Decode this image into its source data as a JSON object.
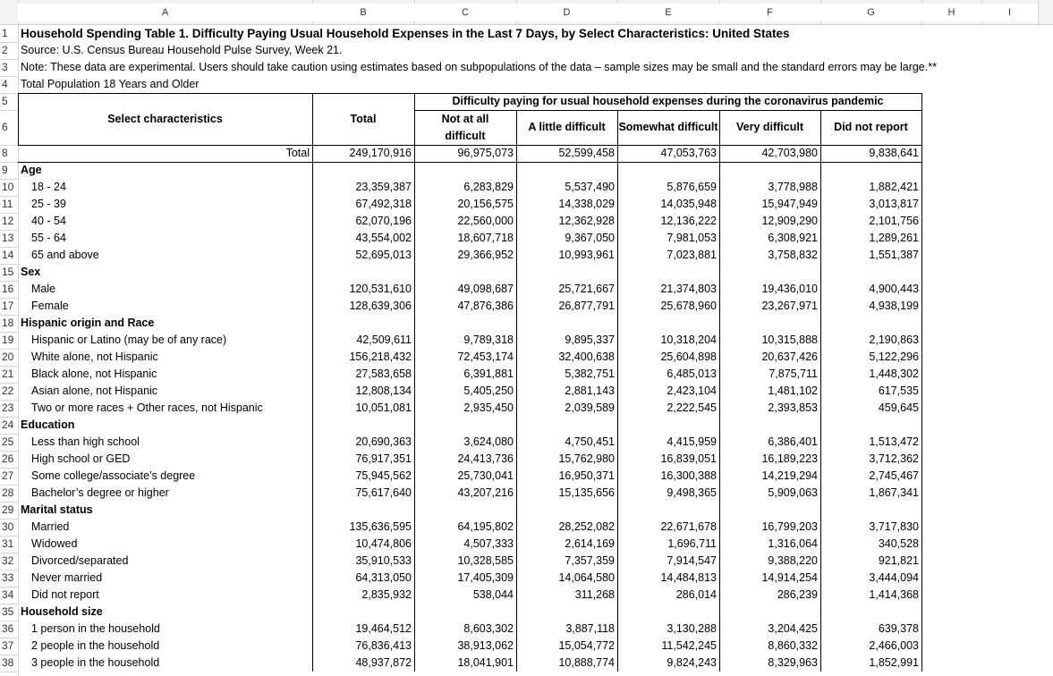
{
  "column_letters": [
    "A",
    "B",
    "C",
    "D",
    "E",
    "F",
    "G",
    "H",
    "I"
  ],
  "row_numbers": [
    "1",
    "2",
    "3",
    "4",
    "5",
    "6",
    "8",
    "9",
    "10",
    "11",
    "12",
    "13",
    "14",
    "15",
    "16",
    "17",
    "18",
    "19",
    "20",
    "21",
    "22",
    "23",
    "24",
    "25",
    "26",
    "27",
    "28",
    "29",
    "30",
    "31",
    "32",
    "33",
    "34",
    "35",
    "36",
    "37",
    "38"
  ],
  "title": "Household Spending Table 1. Difficulty Paying Usual Household Expenses in the Last 7 Days, by Select Characteristics: United States",
  "source": "Source: U.S. Census Bureau Household Pulse Survey, Week 21.",
  "note": "Note: These data are experimental. Users should take caution using estimates based on subpopulations of the data – sample sizes may be small and the standard errors may be large.**",
  "population": "Total Population 18 Years and Older",
  "header": {
    "select": "Select characteristics",
    "total": "Total",
    "group": "Difficulty paying for usual household expenses during the coronavirus pandemic",
    "columns": [
      "Not at all difficult",
      "A little difficult",
      "Somewhat difficult",
      "Very difficult",
      "Did not report"
    ]
  },
  "total_row": {
    "label": "Total",
    "values": [
      "249,170,916",
      "96,975,073",
      "52,599,458",
      "47,053,763",
      "42,703,980",
      "9,838,641"
    ]
  },
  "sections": [
    {
      "label": "Age",
      "rows": [
        {
          "label": "18 - 24",
          "values": [
            "23,359,387",
            "6,283,829",
            "5,537,490",
            "5,876,659",
            "3,778,988",
            "1,882,421"
          ]
        },
        {
          "label": "25 - 39",
          "values": [
            "67,492,318",
            "20,156,575",
            "14,338,029",
            "14,035,948",
            "15,947,949",
            "3,013,817"
          ]
        },
        {
          "label": "40 - 54",
          "values": [
            "62,070,196",
            "22,560,000",
            "12,362,928",
            "12,136,222",
            "12,909,290",
            "2,101,756"
          ]
        },
        {
          "label": "55 - 64",
          "values": [
            "43,554,002",
            "18,607,718",
            "9,367,050",
            "7,981,053",
            "6,308,921",
            "1,289,261"
          ]
        },
        {
          "label": "65 and above",
          "values": [
            "52,695,013",
            "29,366,952",
            "10,993,961",
            "7,023,881",
            "3,758,832",
            "1,551,387"
          ]
        }
      ]
    },
    {
      "label": "Sex",
      "rows": [
        {
          "label": "Male",
          "values": [
            "120,531,610",
            "49,098,687",
            "25,721,667",
            "21,374,803",
            "19,436,010",
            "4,900,443"
          ]
        },
        {
          "label": "Female",
          "values": [
            "128,639,306",
            "47,876,386",
            "26,877,791",
            "25,678,960",
            "23,267,971",
            "4,938,199"
          ]
        }
      ]
    },
    {
      "label": "Hispanic origin and Race",
      "rows": [
        {
          "label": "Hispanic or Latino (may be of any race)",
          "values": [
            "42,509,611",
            "9,789,318",
            "9,895,337",
            "10,318,204",
            "10,315,888",
            "2,190,863"
          ]
        },
        {
          "label": "White alone, not Hispanic",
          "values": [
            "156,218,432",
            "72,453,174",
            "32,400,638",
            "25,604,898",
            "20,637,426",
            "5,122,296"
          ]
        },
        {
          "label": "Black alone, not Hispanic",
          "values": [
            "27,583,658",
            "6,391,881",
            "5,382,751",
            "6,485,013",
            "7,875,711",
            "1,448,302"
          ]
        },
        {
          "label": "Asian alone, not Hispanic",
          "values": [
            "12,808,134",
            "5,405,250",
            "2,881,143",
            "2,423,104",
            "1,481,102",
            "617,535"
          ]
        },
        {
          "label": "Two or more races + Other races, not Hispanic",
          "values": [
            "10,051,081",
            "2,935,450",
            "2,039,589",
            "2,222,545",
            "2,393,853",
            "459,645"
          ]
        }
      ]
    },
    {
      "label": "Education",
      "rows": [
        {
          "label": "Less than high school",
          "values": [
            "20,690,363",
            "3,624,080",
            "4,750,451",
            "4,415,959",
            "6,386,401",
            "1,513,472"
          ]
        },
        {
          "label": "High school or GED",
          "values": [
            "76,917,351",
            "24,413,736",
            "15,762,980",
            "16,839,051",
            "16,189,223",
            "3,712,362"
          ]
        },
        {
          "label": "Some college/associate’s degree",
          "values": [
            "75,945,562",
            "25,730,041",
            "16,950,371",
            "16,300,388",
            "14,219,294",
            "2,745,467"
          ]
        },
        {
          "label": "Bachelor’s degree or higher",
          "values": [
            "75,617,640",
            "43,207,216",
            "15,135,656",
            "9,498,365",
            "5,909,063",
            "1,867,341"
          ]
        }
      ]
    },
    {
      "label": "Marital status",
      "rows": [
        {
          "label": "Married",
          "values": [
            "135,636,595",
            "64,195,802",
            "28,252,082",
            "22,671,678",
            "16,799,203",
            "3,717,830"
          ]
        },
        {
          "label": "Widowed",
          "values": [
            "10,474,806",
            "4,507,333",
            "2,614,169",
            "1,696,711",
            "1,316,064",
            "340,528"
          ]
        },
        {
          "label": "Divorced/separated",
          "values": [
            "35,910,533",
            "10,328,585",
            "7,357,359",
            "7,914,547",
            "9,388,220",
            "921,821"
          ]
        },
        {
          "label": "Never married",
          "values": [
            "64,313,050",
            "17,405,309",
            "14,064,580",
            "14,484,813",
            "14,914,254",
            "3,444,094"
          ]
        },
        {
          "label": "Did not report",
          "values": [
            "2,835,932",
            "538,044",
            "311,268",
            "286,014",
            "286,239",
            "1,414,368"
          ]
        }
      ]
    },
    {
      "label": "Household size",
      "rows": [
        {
          "label": "1 person in the household",
          "values": [
            "19,464,512",
            "8,603,302",
            "3,887,118",
            "3,130,288",
            "3,204,425",
            "639,378"
          ]
        },
        {
          "label": "2 people in the household",
          "values": [
            "76,836,413",
            "38,913,062",
            "15,054,772",
            "11,542,245",
            "8,860,332",
            "2,466,003"
          ]
        },
        {
          "label": "3 people in the household",
          "values": [
            "48,937,872",
            "18,041,901",
            "10,888,774",
            "9,824,243",
            "8,329,963",
            "1,852,991"
          ]
        }
      ]
    }
  ]
}
